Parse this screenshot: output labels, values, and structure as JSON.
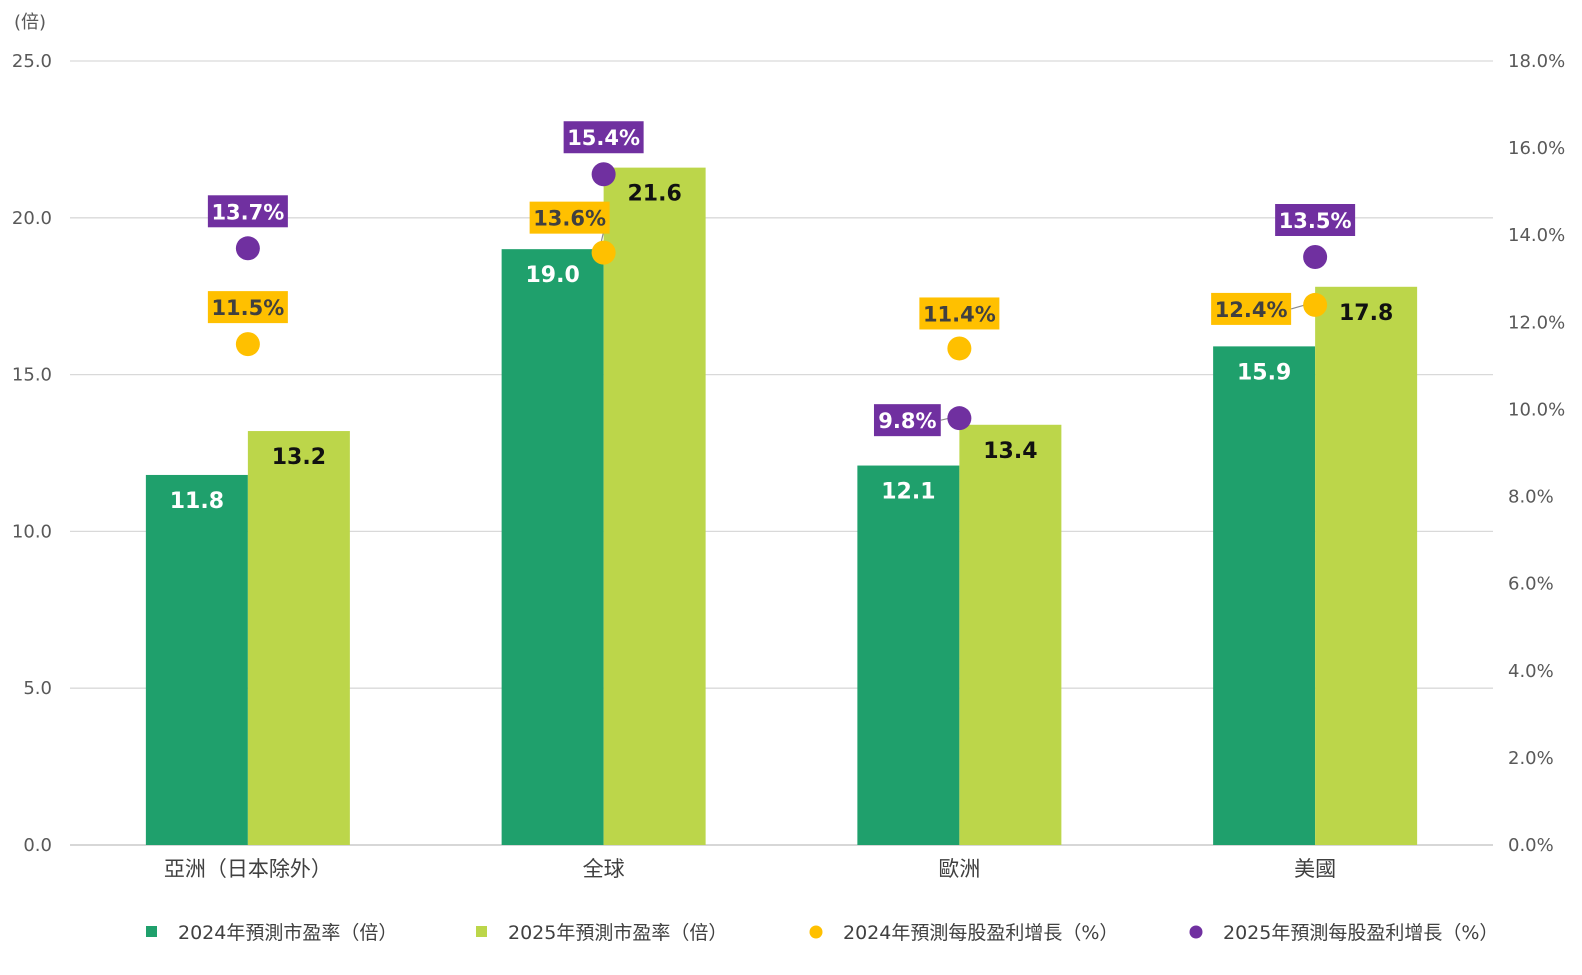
{
  "chart_data": {
    "type": "bar",
    "left_axis_unit": "(倍)",
    "categories": [
      "亞洲（日本除外）",
      "全球",
      "歐洲",
      "美國"
    ],
    "left_axis": {
      "range": [
        0,
        25
      ],
      "ticks": [
        "0.0",
        "5.0",
        "10.0",
        "15.0",
        "20.0",
        "25.0"
      ]
    },
    "right_axis": {
      "range": [
        0,
        18
      ],
      "ticks": [
        "0.0%",
        "2.0%",
        "4.0%",
        "6.0%",
        "8.0%",
        "10.0%",
        "12.0%",
        "14.0%",
        "16.0%",
        "18.0%"
      ]
    },
    "grid": true,
    "legend_position": "bottom",
    "bar_series": [
      {
        "name": "2024年預測市盈率（倍）",
        "color": "#1fa06c",
        "label_color": "#ffffff",
        "values": [
          11.8,
          19.0,
          12.1,
          15.9
        ],
        "labels": [
          "11.8",
          "19.0",
          "12.1",
          "15.9"
        ]
      },
      {
        "name": "2025年預測市盈率（倍）",
        "color": "#bcd64a",
        "label_color": "#111111",
        "values": [
          13.2,
          21.6,
          13.4,
          17.8
        ],
        "labels": [
          "13.2",
          "21.6",
          "13.4",
          "17.8"
        ]
      }
    ],
    "point_series": [
      {
        "name": "2024年預測每股盈利增長（%）",
        "color": "#ffc000",
        "box_color": "#ffc000",
        "text_color": "#404040",
        "values": [
          11.5,
          13.6,
          11.4,
          12.4
        ],
        "labels": [
          "11.5%",
          "13.6%",
          "11.4%",
          "12.4%"
        ]
      },
      {
        "name": "2025年預測每股盈利增長（%）",
        "color": "#7030a0",
        "box_color": "#7030a0",
        "text_color": "#ffffff",
        "values": [
          13.7,
          15.4,
          9.8,
          13.5
        ],
        "labels": [
          "13.7%",
          "15.4%",
          "9.8%",
          "13.5%"
        ]
      }
    ]
  }
}
